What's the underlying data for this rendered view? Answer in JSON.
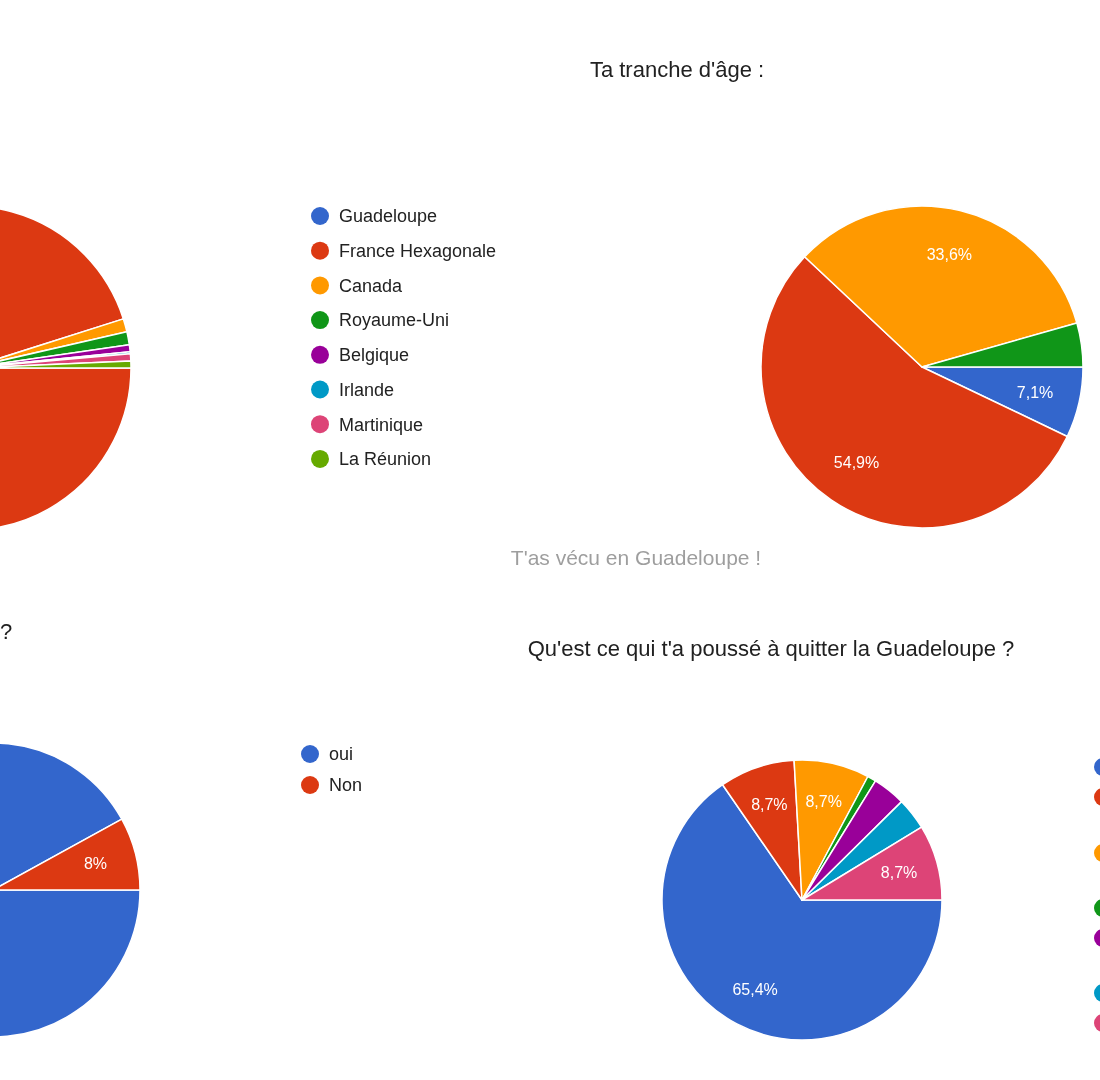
{
  "chart_data": [
    {
      "type": "pie",
      "categories": [
        "Guadeloupe",
        "France Hexagonale",
        "Canada",
        "Royaume-Uni",
        "Belgique",
        "Irlande",
        "Martinique",
        "La Réunion"
      ],
      "values": [
        0,
        95.1,
        1.3,
        1.3,
        0.7,
        0.2,
        0.7,
        0.7
      ],
      "colors": [
        "#3366cc",
        "#dc3912",
        "#ff9900",
        "#109618",
        "#990099",
        "#0099c6",
        "#dd4477",
        "#66aa00"
      ],
      "legend": "right"
    },
    {
      "type": "pie",
      "title": "Ta tranche d'âge :",
      "categories": [
        null,
        null,
        null,
        null
      ],
      "values": [
        7.1,
        54.9,
        33.6,
        4.4
      ],
      "colors": [
        "#3366cc",
        "#dc3912",
        "#ff9900",
        "#109618"
      ],
      "value_labels": [
        "7,1%",
        "54,9%",
        "33,6%",
        null
      ]
    },
    {
      "type": "pie",
      "title": "?",
      "categories": [
        "oui",
        "Non"
      ],
      "values": [
        92,
        8
      ],
      "colors": [
        "#3366cc",
        "#dc3912"
      ],
      "value_labels": [
        null,
        "8%"
      ],
      "legend": "right"
    },
    {
      "type": "pie",
      "title": "Qu'est ce qui t'a poussé à quitter la Guadeloupe ?",
      "categories": [
        null,
        null,
        null,
        null,
        null,
        null,
        null
      ],
      "values": [
        65.4,
        8.7,
        8.7,
        1.0,
        3.8,
        3.7,
        8.7
      ],
      "colors": [
        "#3366cc",
        "#dc3912",
        "#ff9900",
        "#109618",
        "#990099",
        "#0099c6",
        "#dd4477"
      ],
      "value_labels": [
        "65,4%",
        "8,7%",
        "8,7%",
        null,
        null,
        null,
        "8,7%"
      ],
      "annotations": [
        "T'as vécu en Guadeloupe !"
      ]
    }
  ]
}
